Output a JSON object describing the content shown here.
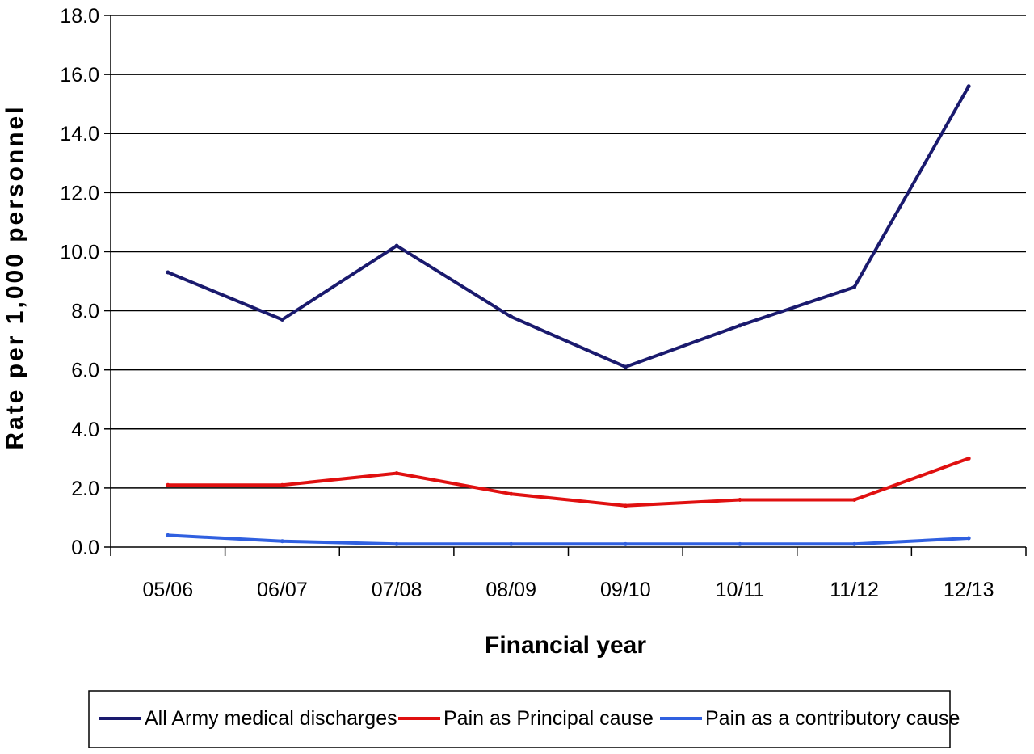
{
  "chart_data": {
    "type": "line",
    "title": "",
    "xlabel": "Financial year",
    "ylabel": "Rate per 1,000 personnel",
    "categories": [
      "05/06",
      "06/07",
      "07/08",
      "08/09",
      "09/10",
      "10/11",
      "11/12",
      "12/13"
    ],
    "ylim": [
      0,
      18
    ],
    "yticks": [
      "0.0",
      "2.0",
      "4.0",
      "6.0",
      "8.0",
      "10.0",
      "12.0",
      "14.0",
      "16.0",
      "18.0"
    ],
    "grid": true,
    "legend_position": "bottom",
    "series": [
      {
        "name": "All Army medical discharges",
        "color": "#1a1a6e",
        "values": [
          9.3,
          7.7,
          10.2,
          7.8,
          6.1,
          7.5,
          8.8,
          15.6
        ]
      },
      {
        "name": "Pain as Principal cause",
        "color": "#e01010",
        "values": [
          2.1,
          2.1,
          2.5,
          1.8,
          1.4,
          1.6,
          1.6,
          3.0
        ]
      },
      {
        "name": "Pain as a contributory cause",
        "color": "#3060e0",
        "values": [
          0.4,
          0.2,
          0.1,
          0.1,
          0.1,
          0.1,
          0.1,
          0.3
        ]
      }
    ]
  }
}
